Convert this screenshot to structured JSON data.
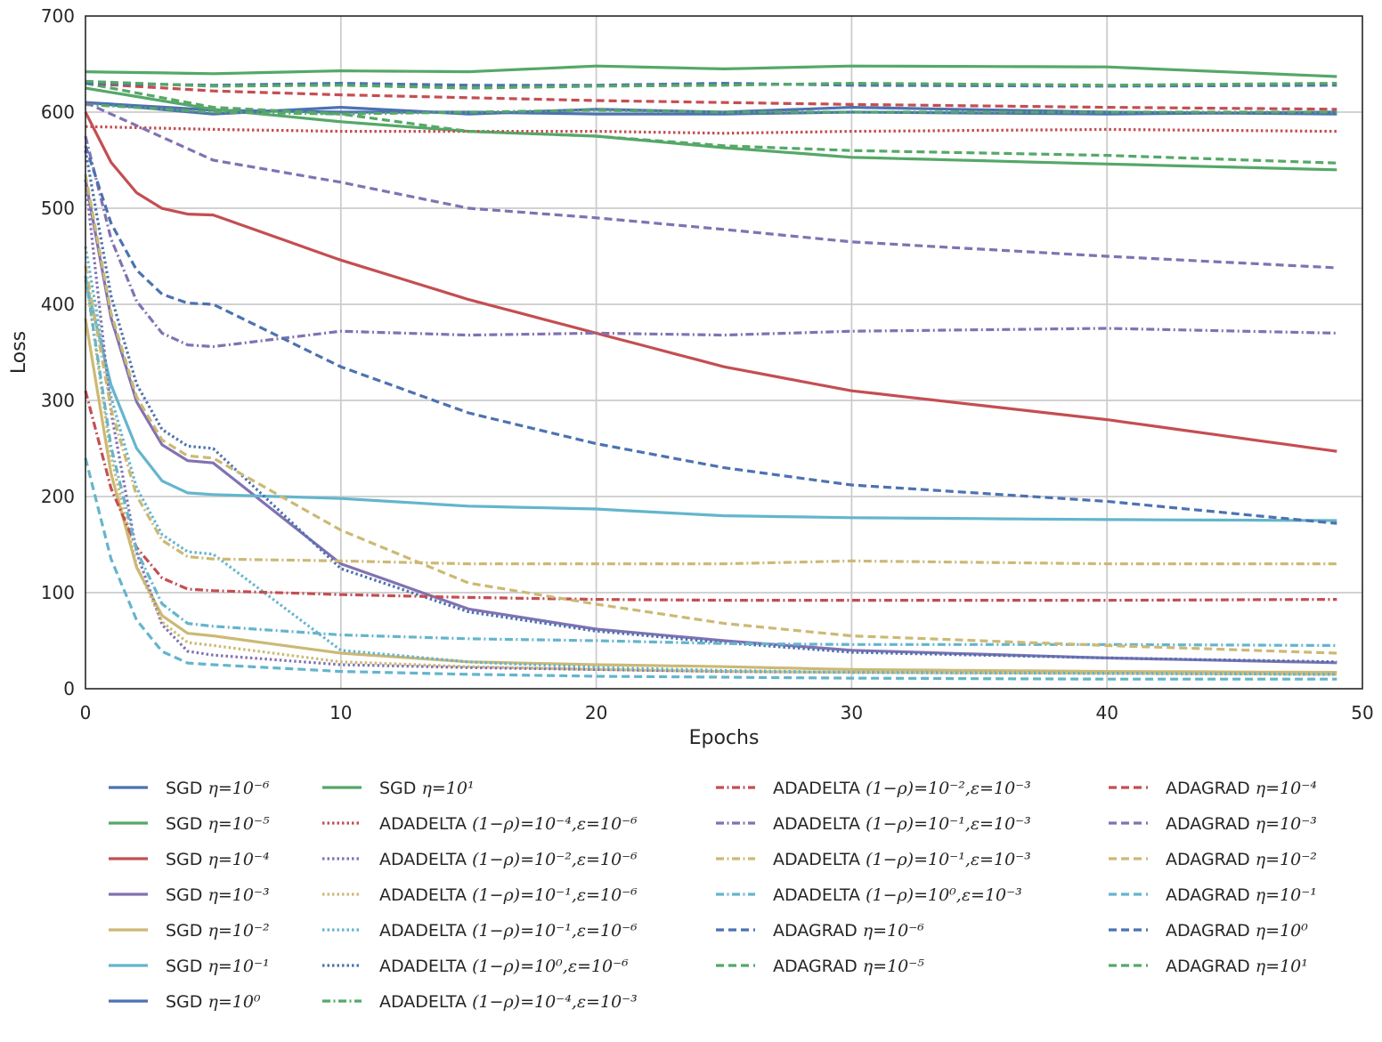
{
  "chart_data": {
    "type": "line",
    "title": "",
    "xlabel": "Epochs",
    "ylabel": "Loss",
    "xlim": [
      0,
      50
    ],
    "ylim": [
      0,
      700
    ],
    "xticks": [
      0,
      10,
      20,
      30,
      40,
      50
    ],
    "yticks": [
      0,
      100,
      200,
      300,
      400,
      500,
      600,
      700
    ],
    "grid": true,
    "legend_placement": "bottom",
    "series": [
      {
        "name": "SGD",
        "param": "η=10⁻⁶",
        "color": "#4c72b0",
        "dash": "solid",
        "key": [
          610,
          602,
          600,
          600,
          598,
          598,
          600,
          598,
          600
        ]
      },
      {
        "name": "SGD",
        "param": "η=10⁻⁵",
        "color": "#55a868",
        "dash": "solid",
        "key": [
          625,
          603,
          590,
          580,
          575,
          563,
          553,
          546,
          540
        ]
      },
      {
        "name": "SGD",
        "param": "η=10⁻⁴",
        "color": "#c44e52",
        "dash": "solid",
        "key": [
          600,
          493,
          446,
          405,
          370,
          335,
          310,
          280,
          247
        ]
      },
      {
        "name": "SGD",
        "param": "η=10⁻³",
        "color": "#8172b2",
        "dash": "solid",
        "key": [
          530,
          235,
          130,
          83,
          62,
          50,
          40,
          32,
          27
        ]
      },
      {
        "name": "SGD",
        "param": "η=10⁻²",
        "color": "#ccb974",
        "dash": "solid",
        "key": [
          385,
          55,
          37,
          28,
          25,
          23,
          20,
          18,
          17
        ]
      },
      {
        "name": "SGD",
        "param": "η=10⁻¹",
        "color": "#64b5cd",
        "dash": "solid",
        "key": [
          425,
          202,
          198,
          190,
          187,
          180,
          178,
          176,
          175
        ]
      },
      {
        "name": "SGD",
        "param": "η=10⁰",
        "color": "#4c72b0",
        "dash": "solid",
        "key": [
          610,
          598,
          605,
          598,
          603,
          600,
          605,
          600,
          598
        ]
      },
      {
        "name": "SGD",
        "param": "η=10¹",
        "color": "#55a868",
        "dash": "solid",
        "key": [
          642,
          640,
          643,
          642,
          648,
          645,
          648,
          647,
          637
        ]
      },
      {
        "name": "ADADELTA",
        "param": "(1−ρ)=10⁻⁴,ε=10⁻⁶",
        "color": "#c44e52",
        "dash": "dotted",
        "key": [
          585,
          582,
          580,
          580,
          580,
          578,
          580,
          582,
          580
        ]
      },
      {
        "name": "ADADELTA",
        "param": "(1−ρ)=10⁻²,ε=10⁻⁶",
        "color": "#8172b2",
        "dash": "dotted",
        "key": [
          530,
          35,
          25,
          22,
          20,
          18,
          17,
          16,
          15
        ]
      },
      {
        "name": "ADADELTA",
        "param": "(1−ρ)=10⁻¹,ε=10⁻⁶",
        "color": "#ccb974",
        "dash": "dotted",
        "key": [
          430,
          45,
          28,
          23,
          20,
          18,
          17,
          16,
          15
        ]
      },
      {
        "name": "ADADELTA",
        "param": "(1−ρ)=10⁻¹,ε=10⁻⁶",
        "color": "#64b5cd",
        "dash": "dotted",
        "key": [
          460,
          140,
          40,
          28,
          22,
          19,
          17,
          16,
          15
        ]
      },
      {
        "name": "ADADELTA",
        "param": "(1−ρ)=10⁰,ε=10⁻⁶",
        "color": "#4c72b0",
        "dash": "dotted",
        "key": [
          560,
          250,
          125,
          80,
          60,
          48,
          38,
          32,
          28
        ]
      },
      {
        "name": "ADADELTA",
        "param": "(1−ρ)=10⁻⁴,ε=10⁻³",
        "color": "#55a868",
        "dash": "dashdot",
        "key": [
          608,
          600,
          598,
          600,
          602,
          600,
          600,
          600,
          600
        ]
      },
      {
        "name": "ADADELTA",
        "param": "(1−ρ)=10⁻²,ε=10⁻³",
        "color": "#c44e52",
        "dash": "dashdot",
        "key": [
          310,
          102,
          98,
          95,
          93,
          92,
          92,
          92,
          93
        ]
      },
      {
        "name": "ADADELTA",
        "param": "(1−ρ)=10⁻¹,ε=10⁻³",
        "color": "#8172b2",
        "dash": "dashdot",
        "key": [
          575,
          356,
          372,
          368,
          370,
          368,
          372,
          375,
          370
        ]
      },
      {
        "name": "ADADELTA",
        "param": "(1−ρ)=10⁻¹,ε=10⁻³",
        "color": "#ccb974",
        "dash": "dashdot",
        "key": [
          440,
          135,
          133,
          130,
          130,
          130,
          133,
          130,
          130
        ]
      },
      {
        "name": "ADADELTA",
        "param": "(1−ρ)=10⁰,ε=10⁻³",
        "color": "#64b5cd",
        "dash": "dashdot",
        "key": [
          430,
          65,
          56,
          52,
          50,
          47,
          46,
          46,
          45
        ]
      },
      {
        "name": "ADAGRAD",
        "param": "η=10⁻⁶",
        "color": "#4c72b0",
        "dash": "dashed",
        "key": [
          565,
          400,
          335,
          287,
          255,
          230,
          212,
          195,
          172
        ]
      },
      {
        "name": "ADAGRAD",
        "param": "η=10⁻⁵",
        "color": "#55a868",
        "dash": "dashed",
        "key": [
          630,
          605,
          598,
          580,
          575,
          565,
          560,
          555,
          547
        ]
      },
      {
        "name": "ADAGRAD",
        "param": "η=10⁻⁴",
        "color": "#c44e52",
        "dash": "dashed",
        "key": [
          630,
          622,
          618,
          615,
          612,
          610,
          608,
          605,
          603
        ]
      },
      {
        "name": "ADAGRAD",
        "param": "η=10⁻³",
        "color": "#8172b2",
        "dash": "dashed",
        "key": [
          610,
          550,
          527,
          500,
          490,
          478,
          465,
          450,
          438
        ]
      },
      {
        "name": "ADAGRAD",
        "param": "η=10⁻²",
        "color": "#ccb974",
        "dash": "dashed",
        "key": [
          535,
          240,
          165,
          110,
          88,
          68,
          55,
          45,
          37
        ]
      },
      {
        "name": "ADAGRAD",
        "param": "η=10⁻¹",
        "color": "#64b5cd",
        "dash": "dashed",
        "key": [
          240,
          25,
          18,
          15,
          13,
          12,
          11,
          10,
          10
        ]
      },
      {
        "name": "ADAGRAD",
        "param": "η=10⁰",
        "color": "#4c72b0",
        "dash": "dashed",
        "key": [
          630,
          628,
          630,
          628,
          628,
          630,
          628,
          627,
          628
        ]
      },
      {
        "name": "ADAGRAD",
        "param": "η=10¹",
        "color": "#55a868",
        "dash": "dashed",
        "key": [
          632,
          627,
          628,
          625,
          627,
          628,
          630,
          628,
          630
        ]
      }
    ]
  }
}
